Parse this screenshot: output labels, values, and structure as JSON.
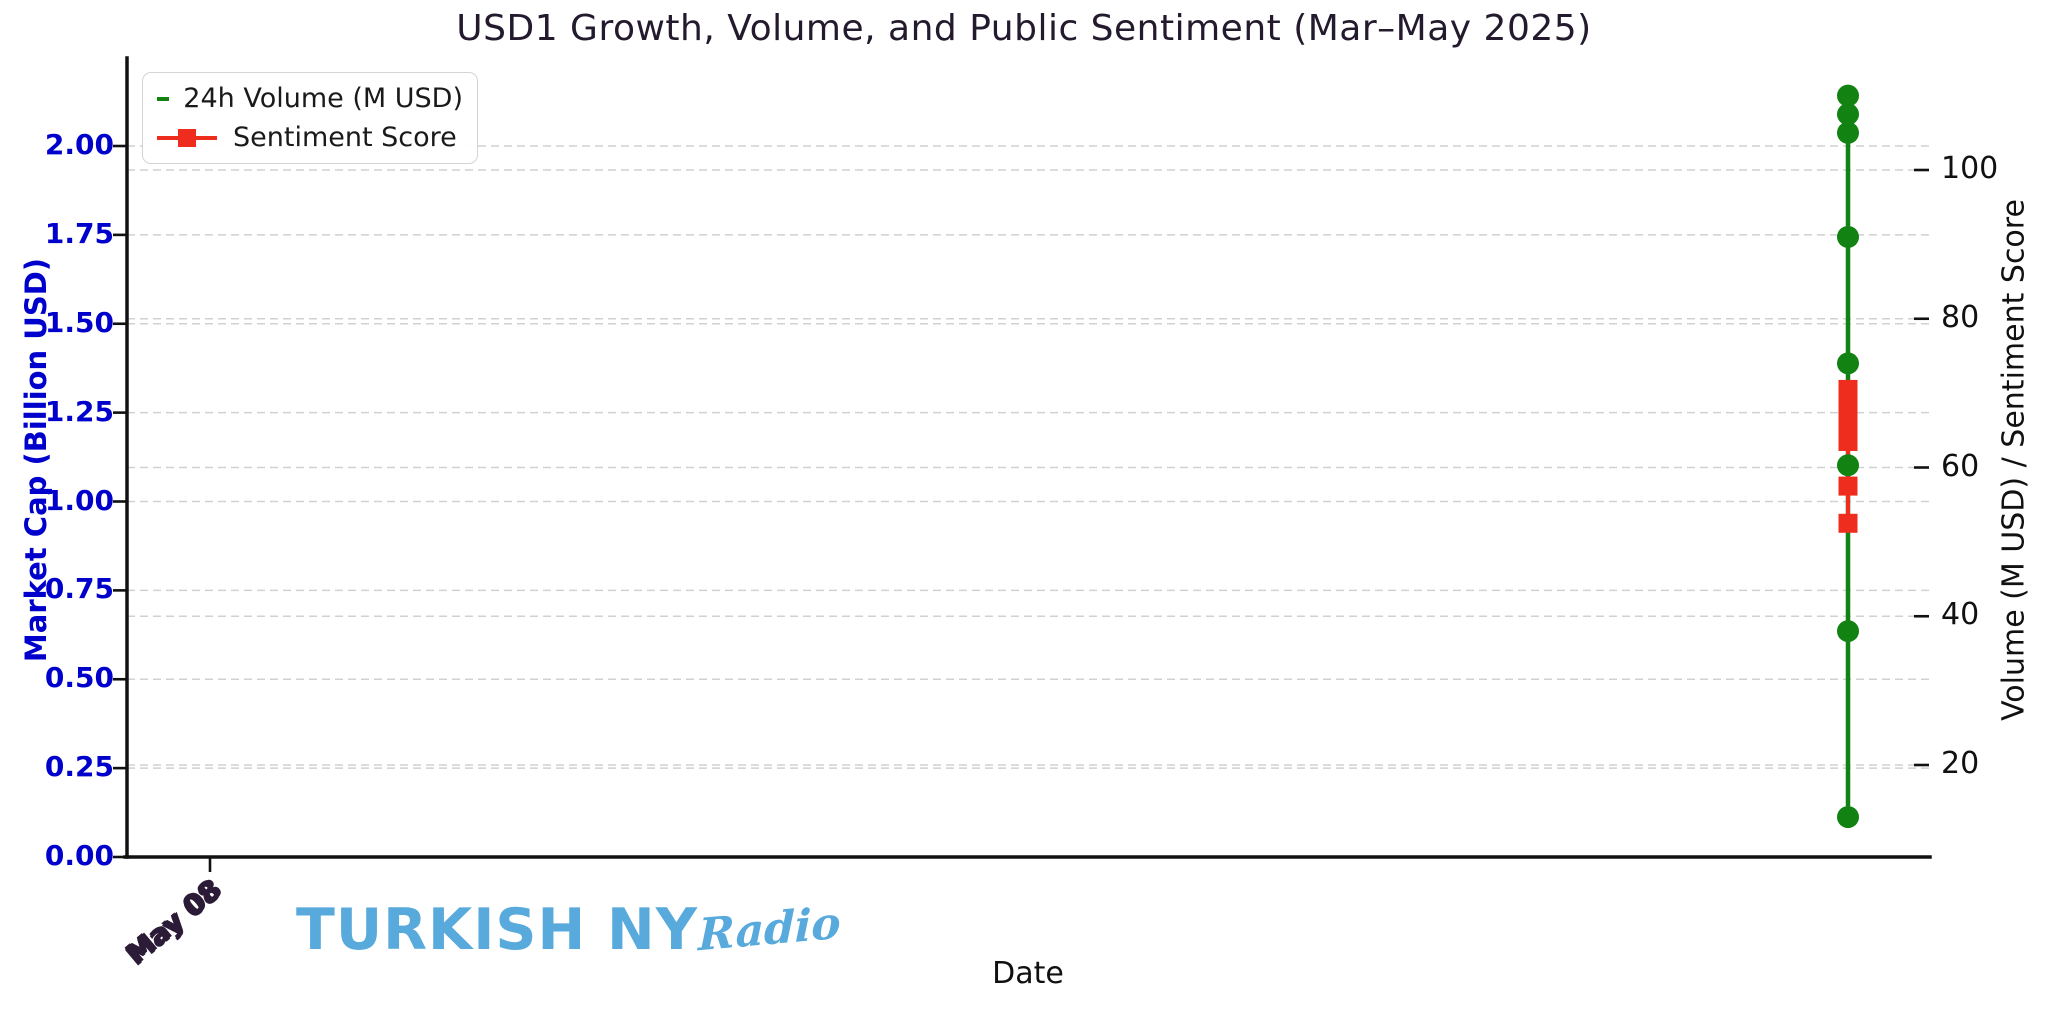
{
  "chart_data": {
    "type": "line",
    "title": "USD1 Growth, Volume, and Public Sentiment (Mar–May 2025)",
    "xlabel": "Date",
    "ylabel_left": "Market Cap (Billion USD)",
    "ylabel_right": "Volume (M USD) / Sentiment Score",
    "x_tick_label": "May 08",
    "left_axis": {
      "tick_labels": [
        "0.00",
        "0.25",
        "0.50",
        "0.75",
        "1.00",
        "1.25",
        "1.50",
        "1.75",
        "2.00"
      ],
      "range": [
        0,
        2.24
      ],
      "color": "#0000cc"
    },
    "right_axis": {
      "tick_labels": [
        20,
        40,
        60,
        80,
        100
      ],
      "range": [
        8.5,
        114.8
      ],
      "color": "#111111"
    },
    "grid": "horizontal dashed, both axes tick positions",
    "legend_position": "upper left",
    "x_note": "all data points clustered in a single date column at the right edge of the plot; single rotated date tick at far left",
    "series": [
      {
        "name": "24h Volume (M USD)",
        "color": "#128212",
        "marker": "circle",
        "axis": "right",
        "values": [
          110,
          107.5,
          105,
          91,
          74,
          60.3,
          38,
          13
        ]
      },
      {
        "name": "Sentiment Score",
        "color": "#ee2d1f",
        "marker": "square",
        "axis": "right",
        "values": [
          70.5,
          69.5,
          68,
          67,
          66,
          63.5,
          57.5,
          52.5
        ]
      }
    ]
  },
  "watermark": {
    "main": "TURKISH NY",
    "script": "Radio",
    "color": "#58a9dc"
  }
}
